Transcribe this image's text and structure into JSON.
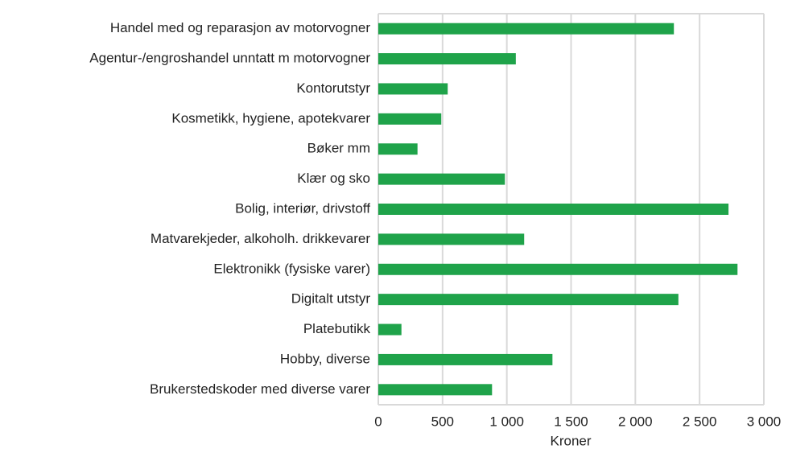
{
  "chart_data": {
    "type": "barh",
    "x_label": "Kroner",
    "categories": [
      "Handel med og reparasjon av motorvogner",
      "Agentur-/engroshandel unntatt m motorvogner",
      "Kontorutstyr",
      "Kosmetikk, hygiene, apotekvarer",
      "Bøker mm",
      "Klær og sko",
      "Bolig, interiør, drivstoff",
      "Matvarekjeder, alkoholh. drikkevarer",
      "Elektronikk (fysiske varer)",
      "Digitalt utstyr",
      "Platebutikk",
      "Hobby, diverse",
      "Brukerstedskoder med diverse varer"
    ],
    "values": [
      2300,
      1070,
      540,
      490,
      305,
      985,
      2725,
      1135,
      2795,
      2335,
      180,
      1355,
      885
    ],
    "color": "#1fa34a",
    "xlim": [
      0,
      3000
    ],
    "xticks": [
      0,
      500,
      {
        "value": 1000,
        "label": "1 000"
      },
      {
        "value": 1500,
        "label": "1 500"
      },
      {
        "value": 2000,
        "label": "2 000"
      },
      {
        "value": 2500,
        "label": "2 500"
      },
      {
        "value": 3000,
        "label": "3 000"
      }
    ],
    "grid": true
  }
}
